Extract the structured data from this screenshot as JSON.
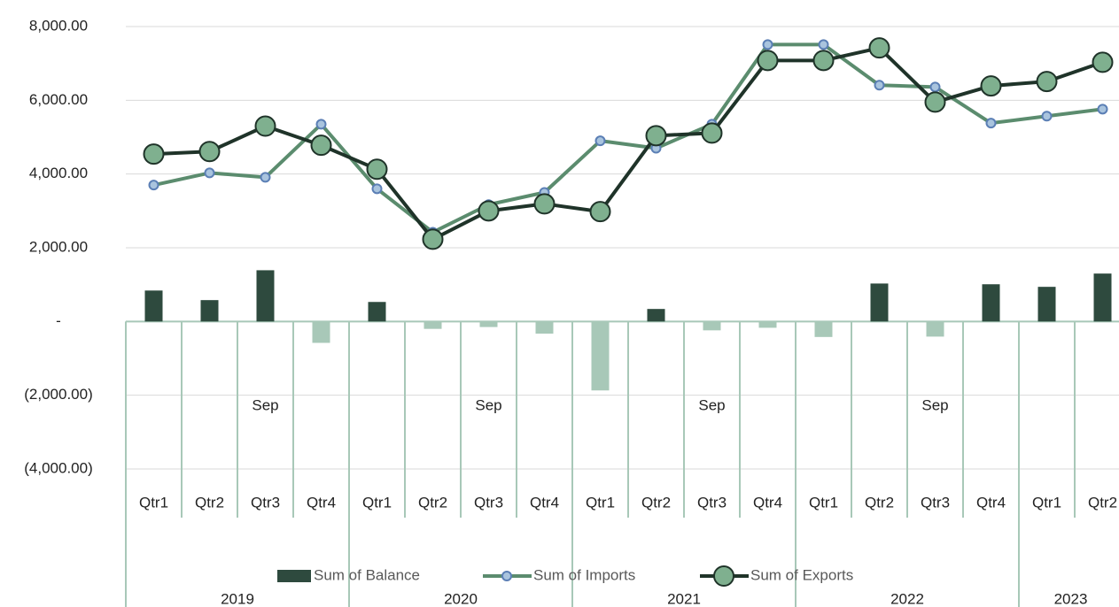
{
  "chart_data": {
    "type": "combo",
    "categories": [
      "Qtr1",
      "Qtr2",
      "Qtr3",
      "Qtr4",
      "Qtr1",
      "Qtr2",
      "Qtr3",
      "Qtr4",
      "Qtr1",
      "Qtr2",
      "Qtr3",
      "Qtr4",
      "Qtr1",
      "Qtr2",
      "Qtr3",
      "Qtr4",
      "Qtr1",
      "Qtr2"
    ],
    "months": [
      null,
      null,
      "Sep",
      null,
      null,
      null,
      "Sep",
      null,
      null,
      null,
      "Sep",
      null,
      null,
      null,
      "Sep",
      null,
      null,
      null
    ],
    "years": [
      {
        "label": "2019",
        "span": 4
      },
      {
        "label": "2020",
        "span": 4
      },
      {
        "label": "2021",
        "span": 4
      },
      {
        "label": "2022",
        "span": 4
      },
      {
        "label": "2023",
        "span": 2
      }
    ],
    "series": [
      {
        "name": "Sum of Balance",
        "kind": "bar",
        "color": "#2e4a3e",
        "negative_color": "#a8c8b8",
        "values": [
          840,
          580,
          1390,
          -580,
          530,
          -200,
          -150,
          -330,
          -1870,
          340,
          -240,
          -170,
          -420,
          1030,
          -410,
          1010,
          940,
          1300
        ]
      },
      {
        "name": "Sum of Imports",
        "kind": "line",
        "color": "#5b8c6e",
        "marker_color": "#a9c4de",
        "marker_edge": "#5b7fb5",
        "marker_size": 5,
        "values": [
          3700,
          4030,
          3910,
          5350,
          3600,
          2420,
          3170,
          3500,
          4900,
          4700,
          5350,
          7510,
          7510,
          6410,
          6360,
          5380,
          5570,
          5760
        ]
      },
      {
        "name": "Sum of Exports",
        "kind": "line",
        "color": "#1f3329",
        "marker_color": "#7fb08f",
        "marker_edge": "#1f3329",
        "marker_size": 11,
        "values": [
          4540,
          4610,
          5300,
          4780,
          4130,
          2230,
          3000,
          3190,
          2980,
          5040,
          5110,
          7080,
          7080,
          7420,
          5950,
          6390,
          6510,
          7030
        ]
      }
    ],
    "ylim": [
      -4000,
      8000
    ],
    "yticks": [
      {
        "value": -4000,
        "label": "(4,000.00)"
      },
      {
        "value": -2000,
        "label": "(2,000.00)"
      },
      {
        "value": 0,
        "label": "-"
      },
      {
        "value": 2000,
        "label": "2,000.00"
      },
      {
        "value": 4000,
        "label": "4,000.00"
      },
      {
        "value": 6000,
        "label": "6,000.00"
      },
      {
        "value": 8000,
        "label": "8,000.00"
      }
    ],
    "grid": true,
    "legend": "bottom"
  }
}
